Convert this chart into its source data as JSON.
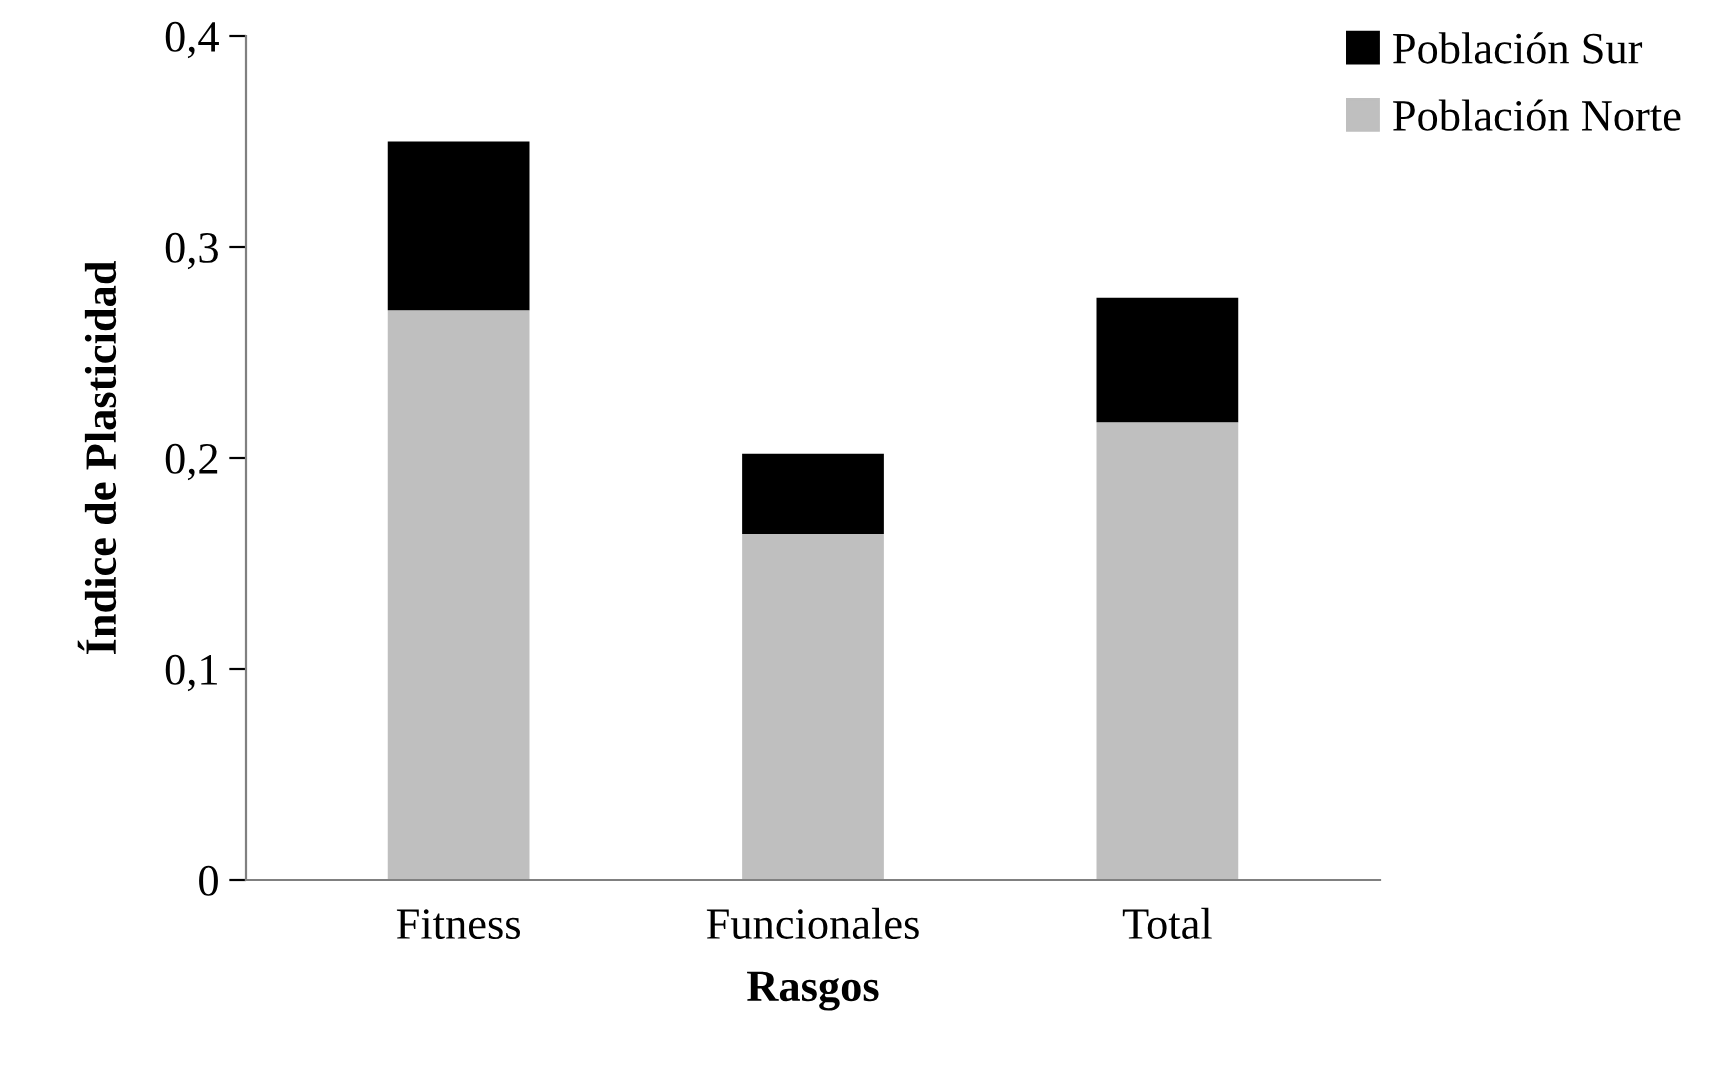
{
  "chart_data": {
    "type": "bar",
    "stacked": true,
    "xlabel": "Rasgos",
    "ylabel": "Índice de Plasticidad",
    "categories": [
      "Fitness",
      "Funcionales",
      "Total"
    ],
    "series": [
      {
        "name": "Población Norte",
        "color": "#bfbfbf",
        "values": [
          0.27,
          0.164,
          0.217
        ]
      },
      {
        "name": "Población Sur",
        "color": "#000000",
        "values": [
          0.08,
          0.038,
          0.059
        ]
      }
    ],
    "ylim": [
      0,
      0.4
    ],
    "yticks": [
      {
        "value": 0,
        "label": "0"
      },
      {
        "value": 0.1,
        "label": "0,1"
      },
      {
        "value": 0.2,
        "label": "0,2"
      },
      {
        "value": 0.3,
        "label": "0,3"
      },
      {
        "value": 0.4,
        "label": "0,4"
      }
    ],
    "grid": false,
    "legend": "top right"
  }
}
